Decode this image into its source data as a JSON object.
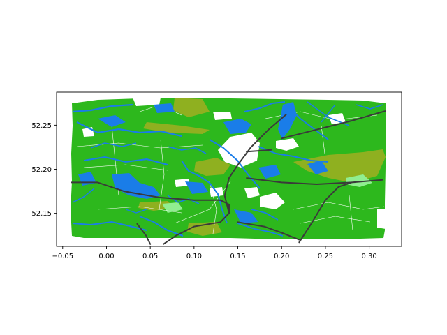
{
  "chart_data": {
    "type": "map",
    "title": "",
    "xlabel": "",
    "ylabel": "",
    "xlim": [
      -0.057,
      0.337
    ],
    "ylim": [
      52.1125,
      52.2875
    ],
    "xticks": [
      -0.05,
      0.0,
      0.05,
      0.1,
      0.15,
      0.2,
      0.25,
      0.3
    ],
    "xtick_labels": [
      "−0.05",
      "0.00",
      "0.05",
      "0.10",
      "0.15",
      "0.20",
      "0.25",
      "0.30"
    ],
    "yticks": [
      52.15,
      52.2,
      52.25
    ],
    "ytick_labels": [
      "52.15",
      "52.20",
      "52.25"
    ],
    "grid": false,
    "layers": [
      {
        "name": "green",
        "color": "#2db81d"
      },
      {
        "name": "olive",
        "color": "#8fb020"
      },
      {
        "name": "light-green",
        "color": "#90ee90"
      },
      {
        "name": "water",
        "color": "#1a7de8"
      },
      {
        "name": "roads",
        "color": "#3a3a3a"
      }
    ],
    "roads": [
      [
        [
          -0.04,
          52.185
        ],
        [
          -0.01,
          52.185
        ],
        [
          0.02,
          52.175
        ],
        [
          0.06,
          52.168
        ],
        [
          0.1,
          52.165
        ],
        [
          0.13,
          52.165
        ],
        [
          0.14,
          52.16
        ],
        [
          0.14,
          52.15
        ]
      ],
      [
        [
          0.14,
          52.15
        ],
        [
          0.135,
          52.17
        ],
        [
          0.14,
          52.19
        ],
        [
          0.15,
          52.205
        ],
        [
          0.165,
          52.225
        ],
        [
          0.185,
          52.245
        ],
        [
          0.205,
          52.262
        ]
      ],
      [
        [
          0.14,
          52.15
        ],
        [
          0.13,
          52.14
        ],
        [
          0.1,
          52.135
        ],
        [
          0.08,
          52.125
        ],
        [
          0.065,
          52.115
        ]
      ],
      [
        [
          0.15,
          52.14
        ],
        [
          0.18,
          52.135
        ],
        [
          0.2,
          52.128
        ],
        [
          0.22,
          52.12
        ]
      ],
      [
        [
          0.16,
          52.19
        ],
        [
          0.2,
          52.185
        ],
        [
          0.24,
          52.183
        ],
        [
          0.28,
          52.185
        ],
        [
          0.315,
          52.188
        ]
      ],
      [
        [
          0.22,
          52.117
        ],
        [
          0.235,
          52.14
        ],
        [
          0.25,
          52.165
        ],
        [
          0.265,
          52.18
        ],
        [
          0.28,
          52.185
        ]
      ],
      [
        [
          0.2,
          52.235
        ],
        [
          0.24,
          52.245
        ],
        [
          0.28,
          52.255
        ],
        [
          0.318,
          52.266
        ]
      ],
      [
        [
          0.16,
          52.22
        ],
        [
          0.175,
          52.221
        ],
        [
          0.188,
          52.222
        ]
      ],
      [
        [
          0.035,
          52.138
        ],
        [
          0.045,
          52.125
        ],
        [
          0.05,
          52.115
        ]
      ]
    ]
  }
}
